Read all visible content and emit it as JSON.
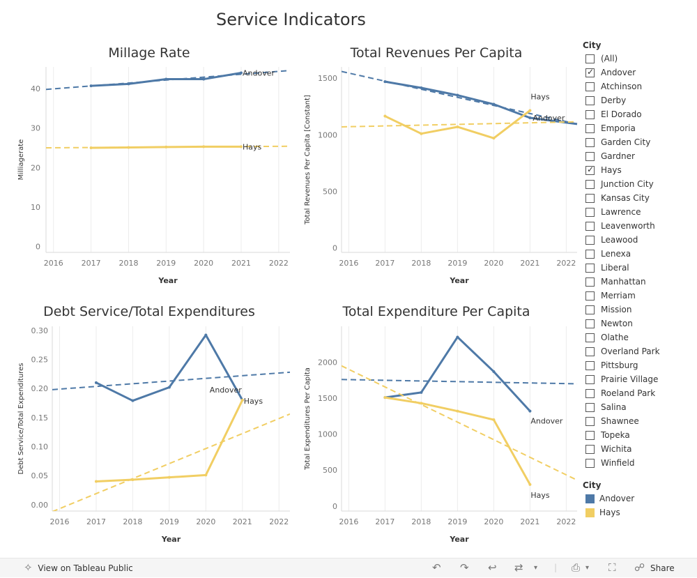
{
  "dashboard": {
    "title": "Service Indicators"
  },
  "colors": {
    "andover": "#4e79a7",
    "hays": "#f1ce63",
    "grid": "#ececec",
    "axis_text": "#777777"
  },
  "chart_data": [
    {
      "id": "millage",
      "type": "line",
      "title": "Millage Rate",
      "xlabel": "Year",
      "ylabel": "Milliagerate",
      "x_ticks": [
        2016,
        2017,
        2018,
        2019,
        2020,
        2021,
        2022
      ],
      "xlim": [
        2015.8,
        2022.3
      ],
      "ylim": [
        -1.5,
        45.5
      ],
      "y_ticks": [
        0,
        10,
        20,
        30,
        40
      ],
      "y_tick_labels": [
        "0",
        "10",
        "20",
        "30",
        "40"
      ],
      "series": [
        {
          "name": "Andover",
          "color_key": "andover",
          "x": [
            2017,
            2018,
            2019,
            2020,
            2021
          ],
          "values": [
            40.7,
            41.2,
            42.4,
            42.4,
            44.0
          ],
          "trend": [
            39.8,
            44.6
          ],
          "label": "Andover"
        },
        {
          "name": "Hays",
          "color_key": "hays",
          "x": [
            2017,
            2018,
            2019,
            2020,
            2021
          ],
          "values": [
            25.0,
            25.1,
            25.2,
            25.3,
            25.3
          ],
          "trend": [
            25.0,
            25.4
          ],
          "label": "Hays"
        }
      ]
    },
    {
      "id": "revenues",
      "type": "line",
      "title": "Total Revenues Per Capita",
      "xlabel": "Year",
      "ylabel": "Total Revenues Per Capita [Constant]",
      "x_ticks": [
        2016,
        2017,
        2018,
        2019,
        2020,
        2021,
        2022
      ],
      "xlim": [
        2015.8,
        2022.3
      ],
      "ylim": [
        -40,
        1600
      ],
      "y_ticks": [
        0,
        500,
        1000,
        1500
      ],
      "y_tick_labels": [
        "0",
        "500",
        "1000",
        "1500"
      ],
      "series": [
        {
          "name": "Andover",
          "color_key": "andover",
          "x": [
            2017,
            2018,
            2019,
            2020,
            2021,
            2022.3
          ],
          "values": [
            1470,
            1415,
            1350,
            1270,
            1150,
            1095
          ],
          "trend": [
            1560,
            1095
          ],
          "label": "Andover"
        },
        {
          "name": "Hays",
          "color_key": "hays",
          "x": [
            2017,
            2018,
            2019,
            2020,
            2021
          ],
          "values": [
            1165,
            1010,
            1070,
            970,
            1215
          ],
          "trend": [
            1070,
            1115
          ],
          "label": "Hays"
        }
      ]
    },
    {
      "id": "debt",
      "type": "line",
      "title": "Debt Service/Total Expenditures",
      "xlabel": "Year",
      "ylabel": "Debt Service/Total Expenditures",
      "x_ticks": [
        2016,
        2017,
        2018,
        2019,
        2020,
        2021,
        2022
      ],
      "xlim": [
        2015.8,
        2022.3
      ],
      "ylim": [
        -0.011,
        0.307
      ],
      "y_ticks": [
        0,
        0.05,
        0.1,
        0.15,
        0.2,
        0.25,
        0.3
      ],
      "y_tick_labels": [
        "0.00",
        "0.05",
        "0.10",
        "0.15",
        "0.20",
        "0.25",
        "0.30"
      ],
      "series": [
        {
          "name": "Andover",
          "color_key": "andover",
          "x": [
            2017,
            2018,
            2019,
            2020,
            2021
          ],
          "values": [
            0.21,
            0.179,
            0.202,
            0.292,
            0.18
          ],
          "trend": [
            0.198,
            0.228
          ],
          "label": "Andover"
        },
        {
          "name": "Hays",
          "color_key": "hays",
          "x": [
            2017,
            2018,
            2019,
            2020,
            2021
          ],
          "values": [
            0.04,
            0.043,
            0.047,
            0.051,
            0.18
          ],
          "trend": [
            -0.012,
            0.156
          ],
          "label": "Hays"
        }
      ]
    },
    {
      "id": "expenditure",
      "type": "line",
      "title": "Total Expenditure Per Capita",
      "xlabel": "Year",
      "ylabel": "Total Expenditures Per Capita",
      "x_ticks": [
        2016,
        2017,
        2018,
        2019,
        2020,
        2021,
        2022
      ],
      "xlim": [
        2015.8,
        2022.3
      ],
      "ylim": [
        -70,
        2500
      ],
      "y_ticks": [
        0,
        500,
        1000,
        1500,
        2000
      ],
      "y_tick_labels": [
        "0",
        "500",
        "1000",
        "1500",
        "2000"
      ],
      "series": [
        {
          "name": "Andover",
          "color_key": "andover",
          "x": [
            2017,
            2018,
            2019,
            2020,
            2021
          ],
          "values": [
            1510,
            1580,
            2350,
            1870,
            1320
          ],
          "trend": [
            1760,
            1700
          ],
          "label": "Andover"
        },
        {
          "name": "Hays",
          "color_key": "hays",
          "x": [
            2017,
            2018,
            2019,
            2020,
            2021
          ],
          "values": [
            1510,
            1430,
            1320,
            1200,
            300
          ],
          "trend": [
            1950,
            360
          ],
          "label": "Hays"
        }
      ]
    }
  ],
  "filter": {
    "heading": "City",
    "options": [
      {
        "label": "(All)",
        "checked": false
      },
      {
        "label": "Andover",
        "checked": true
      },
      {
        "label": "Atchinson",
        "checked": false
      },
      {
        "label": "Derby",
        "checked": false
      },
      {
        "label": "El Dorado",
        "checked": false
      },
      {
        "label": "Emporia",
        "checked": false
      },
      {
        "label": "Garden City",
        "checked": false
      },
      {
        "label": "Gardner",
        "checked": false
      },
      {
        "label": "Hays",
        "checked": true
      },
      {
        "label": "Junction City",
        "checked": false
      },
      {
        "label": "Kansas City",
        "checked": false
      },
      {
        "label": "Lawrence",
        "checked": false
      },
      {
        "label": "Leavenworth",
        "checked": false
      },
      {
        "label": "Leawood",
        "checked": false
      },
      {
        "label": "Lenexa",
        "checked": false
      },
      {
        "label": "Liberal",
        "checked": false
      },
      {
        "label": "Manhattan",
        "checked": false
      },
      {
        "label": "Merriam",
        "checked": false
      },
      {
        "label": "Mission",
        "checked": false
      },
      {
        "label": "Newton",
        "checked": false
      },
      {
        "label": "Olathe",
        "checked": false
      },
      {
        "label": "Overland Park",
        "checked": false
      },
      {
        "label": "Pittsburg",
        "checked": false
      },
      {
        "label": "Prairie Village",
        "checked": false
      },
      {
        "label": "Roeland Park",
        "checked": false
      },
      {
        "label": "Salina",
        "checked": false
      },
      {
        "label": "Shawnee",
        "checked": false
      },
      {
        "label": "Topeka",
        "checked": false
      },
      {
        "label": "Wichita",
        "checked": false
      },
      {
        "label": "Winfield",
        "checked": false
      }
    ]
  },
  "legend": {
    "heading": "City",
    "items": [
      {
        "label": "Andover",
        "color": "#4e79a7"
      },
      {
        "label": "Hays",
        "color": "#f1ce63"
      }
    ]
  },
  "toolbar": {
    "view_label": "View on Tableau Public",
    "share_label": "Share"
  }
}
